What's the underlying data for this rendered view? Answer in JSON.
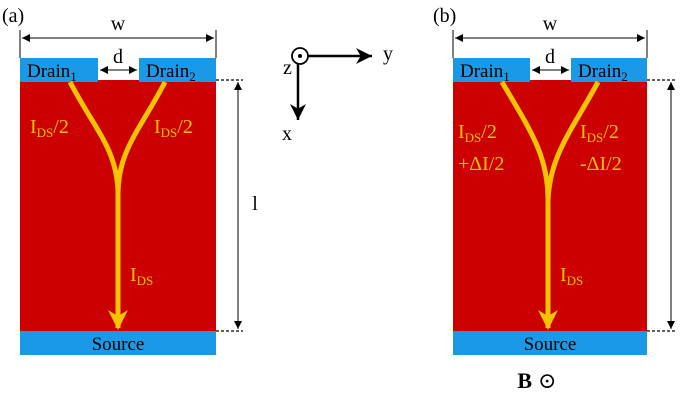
{
  "colors": {
    "channel": "#cc0000",
    "contact": "#1a99e6",
    "current": "#f5c400",
    "line": "#000000"
  },
  "panel_a": {
    "label": "(a)",
    "width_label": "w",
    "gap_label": "d",
    "drain1": {
      "base": "Drain",
      "sub": "1"
    },
    "drain2": {
      "base": "Drain",
      "sub": "2"
    },
    "source": "Source",
    "length_label": "l",
    "left_current": {
      "base": "I",
      "sub": "DS",
      "tail": "/2"
    },
    "right_current": {
      "base": "I",
      "sub": "DS",
      "tail": "/2"
    },
    "total_current": {
      "base": "I",
      "sub": "DS"
    }
  },
  "axes": {
    "z_label": "z",
    "y_label": "y",
    "x_label": "x"
  },
  "panel_b": {
    "label": "(b)",
    "width_label": "w",
    "gap_label": "d",
    "drain1": {
      "base": "Drain",
      "sub": "1"
    },
    "drain2": {
      "base": "Drain",
      "sub": "2"
    },
    "source": "Source",
    "left_current": {
      "base": "I",
      "sub": "DS",
      "tail": "/2",
      "line2": "+ΔI/2"
    },
    "right_current": {
      "base": "I",
      "sub": "DS",
      "tail": "/2",
      "line2": "-ΔI/2"
    },
    "total_current": {
      "base": "I",
      "sub": "DS"
    },
    "field": {
      "symbol": "B",
      "direction": "⊙"
    }
  }
}
